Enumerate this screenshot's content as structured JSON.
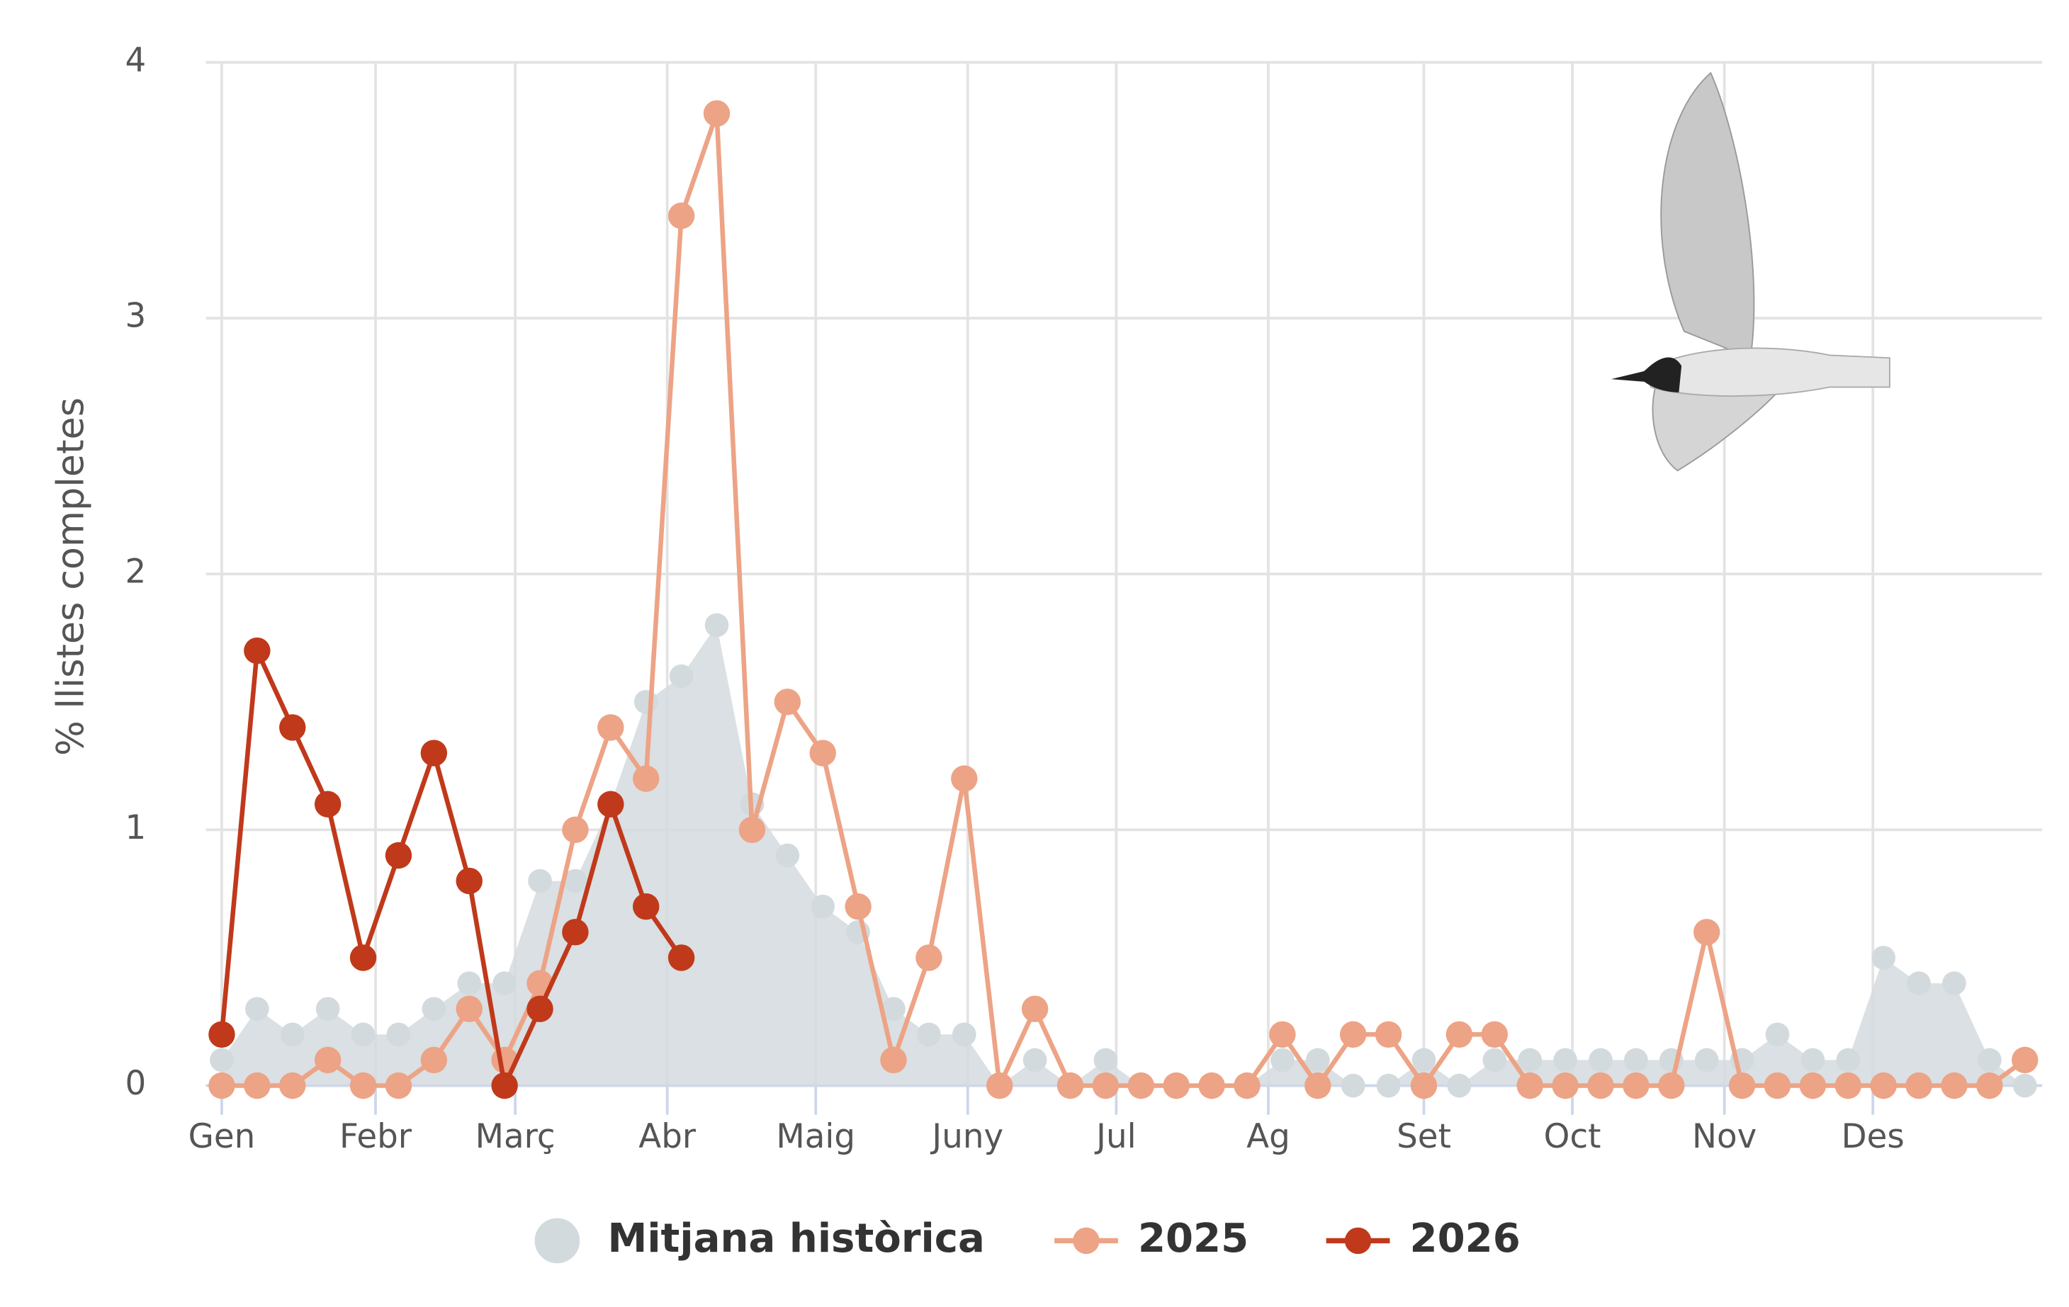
{
  "chart_data": {
    "type": "line",
    "y_label": "% llistes completes",
    "x": [
      1,
      2,
      3,
      4,
      5,
      6,
      7,
      8,
      9,
      10,
      11,
      12,
      13,
      14,
      15,
      16,
      17,
      18,
      19,
      20,
      21,
      22,
      23,
      24,
      25,
      26,
      27,
      28,
      29,
      30,
      31,
      32,
      33,
      34,
      35,
      36,
      37,
      38,
      39,
      40,
      41,
      42,
      43,
      44,
      45,
      46,
      47,
      48,
      49,
      50,
      51,
      52
    ],
    "xlim": [
      1,
      52
    ],
    "xticks": [
      {
        "value": 1,
        "label": "Gen"
      },
      {
        "value": 5.35,
        "label": "Febr"
      },
      {
        "value": 9.3,
        "label": "Març"
      },
      {
        "value": 13.6,
        "label": "Abr"
      },
      {
        "value": 17.8,
        "label": "Maig"
      },
      {
        "value": 22.1,
        "label": "Juny"
      },
      {
        "value": 26.3,
        "label": "Jul"
      },
      {
        "value": 30.6,
        "label": "Ag"
      },
      {
        "value": 35,
        "label": "Set"
      },
      {
        "value": 39.2,
        "label": "Oct"
      },
      {
        "value": 43.5,
        "label": "Nov"
      },
      {
        "value": 47.7,
        "label": "Des"
      }
    ],
    "ylim": [
      0,
      4
    ],
    "yticks": [
      0,
      1,
      2,
      3,
      4
    ],
    "grid": true,
    "legend": "bottom",
    "series": [
      {
        "name": "Mitjana històrica",
        "color": "#d3dade",
        "area": true,
        "values": [
          0.1,
          0.3,
          0.2,
          0.3,
          0.2,
          0.2,
          0.3,
          0.4,
          0.4,
          0.8,
          0.8,
          1.1,
          1.5,
          1.6,
          1.8,
          1.1,
          0.9,
          0.7,
          0.6,
          0.3,
          0.2,
          0.2,
          0,
          0.1,
          0,
          0.1,
          0,
          0,
          0,
          0,
          0.1,
          0.1,
          0,
          0,
          0.1,
          0,
          0.1,
          0.1,
          0.1,
          0.1,
          0.1,
          0.1,
          0.1,
          0.1,
          0.2,
          0.1,
          0.1,
          0.5,
          0.4,
          0.4,
          0.1,
          0
        ]
      },
      {
        "name": "2025",
        "color": "#eda385",
        "values": [
          0,
          0,
          0,
          0.1,
          0,
          0,
          0.1,
          0.3,
          0.1,
          0.4,
          1.0,
          1.4,
          1.2,
          3.4,
          3.8,
          1.0,
          1.5,
          1.3,
          0.7,
          0.1,
          0.5,
          1.2,
          0,
          0.3,
          0,
          0,
          0,
          0,
          0,
          0,
          0.2,
          0,
          0.2,
          0.2,
          0,
          0.2,
          0.2,
          0,
          0,
          0,
          0,
          0,
          0.6,
          0,
          0,
          0,
          0,
          0,
          0,
          0,
          0,
          0.1
        ]
      },
      {
        "name": "2026",
        "color": "#c0391b",
        "values": [
          0.2,
          1.7,
          1.4,
          1.1,
          0.5,
          0.9,
          1.3,
          0.8,
          0,
          0.3,
          0.6,
          1.1,
          0.7,
          0.5,
          null,
          null,
          null,
          null,
          null,
          null,
          null,
          null,
          null,
          null,
          null,
          null,
          null,
          null,
          null,
          null,
          null,
          null,
          null,
          null,
          null,
          null,
          null,
          null,
          null,
          null,
          null,
          null,
          null,
          null,
          null,
          null,
          null,
          null,
          null,
          null,
          null,
          null
        ]
      }
    ]
  }
}
